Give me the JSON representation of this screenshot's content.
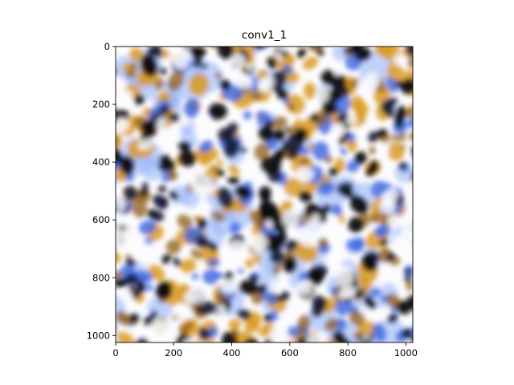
{
  "figure": {
    "title": "conv1_1",
    "image_description": "VGG conv1_1 feature visualization texture with black, golden-orange, blue and white blotches",
    "colors": {
      "background": "#ffffff",
      "black": "#0b0a0c",
      "dark_navy": "#141a34",
      "gold": "#d99a1e",
      "dark_gold": "#8a5a10",
      "blue": "#3a63e0",
      "light_blue": "#8fb0f5",
      "white": "#fcfcff"
    },
    "x_axis": {
      "ticks": [
        "0",
        "200",
        "400",
        "600",
        "800",
        "1000"
      ],
      "tick_values": [
        0,
        200,
        400,
        600,
        800,
        1000
      ],
      "range": [
        0,
        1024
      ]
    },
    "y_axis": {
      "ticks": [
        "0",
        "200",
        "400",
        "600",
        "800",
        "1000"
      ],
      "tick_values": [
        0,
        200,
        400,
        600,
        800,
        1000
      ],
      "range": [
        0,
        1024
      ],
      "inverted": true
    }
  }
}
